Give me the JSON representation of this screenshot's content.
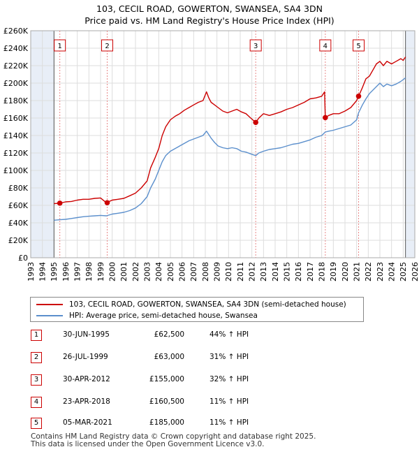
{
  "title_line1": "103, CECIL ROAD, GOWERTON, SWANSEA, SA4 3DN",
  "title_line2": "Price paid vs. HM Land Registry's House Price Index (HPI)",
  "legend": {
    "property": "103, CECIL ROAD, GOWERTON, SWANSEA, SA4 3DN (semi-detached house)",
    "hpi": "HPI: Average price, semi-detached house, Swansea"
  },
  "colors": {
    "property": "#cc0000",
    "hpi": "#5b8fcc",
    "shade": "#e8eef7",
    "grid": "#dddddd",
    "marker_line": "#e88888"
  },
  "sales": [
    {
      "num": "1",
      "date": "30-JUN-1995",
      "price": "£62,500",
      "hpi": "44% ↑ HPI"
    },
    {
      "num": "2",
      "date": "26-JUL-1999",
      "price": "£63,000",
      "hpi": "31% ↑ HPI"
    },
    {
      "num": "3",
      "date": "30-APR-2012",
      "price": "£155,000",
      "hpi": "32% ↑ HPI"
    },
    {
      "num": "4",
      "date": "23-APR-2018",
      "price": "£160,500",
      "hpi": "11% ↑ HPI"
    },
    {
      "num": "5",
      "date": "05-MAR-2021",
      "price": "£185,000",
      "hpi": "11% ↑ HPI"
    }
  ],
  "footer_line1": "Contains HM Land Registry data © Crown copyright and database right 2025.",
  "footer_line2": "This data is licensed under the Open Government Licence v3.0.",
  "chart_data": {
    "type": "line",
    "xlim": [
      1993,
      2026
    ],
    "ylim": [
      0,
      260000
    ],
    "x_ticks": [
      1993,
      1994,
      1995,
      1996,
      1997,
      1998,
      1999,
      2000,
      2001,
      2002,
      2003,
      2004,
      2005,
      2006,
      2007,
      2008,
      2009,
      2010,
      2011,
      2012,
      2013,
      2014,
      2015,
      2016,
      2017,
      2018,
      2019,
      2020,
      2021,
      2022,
      2023,
      2024,
      2025,
      2026
    ],
    "y_ticks": [
      {
        "v": 0,
        "label": "£0"
      },
      {
        "v": 20000,
        "label": "£20K"
      },
      {
        "v": 40000,
        "label": "£40K"
      },
      {
        "v": 60000,
        "label": "£60K"
      },
      {
        "v": 80000,
        "label": "£80K"
      },
      {
        "v": 100000,
        "label": "£100K"
      },
      {
        "v": 120000,
        "label": "£120K"
      },
      {
        "v": 140000,
        "label": "£140K"
      },
      {
        "v": 160000,
        "label": "£160K"
      },
      {
        "v": 180000,
        "label": "£180K"
      },
      {
        "v": 200000,
        "label": "£200K"
      },
      {
        "v": 220000,
        "label": "£220K"
      },
      {
        "v": 240000,
        "label": "£240K"
      },
      {
        "v": 260000,
        "label": "£260K"
      }
    ],
    "grid": true,
    "shaded_ranges": [
      [
        1993,
        1995.0
      ],
      [
        2025.2,
        2026
      ]
    ],
    "markers": [
      {
        "label": "1",
        "x": 1995.5,
        "y": 62500
      },
      {
        "label": "2",
        "x": 1999.57,
        "y": 63000
      },
      {
        "label": "3",
        "x": 2012.33,
        "y": 155000
      },
      {
        "label": "4",
        "x": 2018.31,
        "y": 160500
      },
      {
        "label": "5",
        "x": 2021.17,
        "y": 185000
      }
    ],
    "series": [
      {
        "name": "103, CECIL ROAD, GOWERTON, SWANSEA, SA4 3DN (semi-detached house)",
        "x": [
          1995.0,
          1995.5,
          1996,
          1996.5,
          1997,
          1997.5,
          1998,
          1998.5,
          1999,
          1999.5,
          2000,
          2000.5,
          2001,
          2001.5,
          2002,
          2002.5,
          2003,
          2003.3,
          2003.7,
          2004,
          2004.3,
          2004.6,
          2005,
          2005.4,
          2005.8,
          2006.2,
          2006.6,
          2007,
          2007.4,
          2007.8,
          2008.1,
          2008.3,
          2008.5,
          2008.8,
          2009.1,
          2009.5,
          2009.9,
          2010.3,
          2010.7,
          2011.1,
          2011.5,
          2011.9,
          2012.33,
          2012.6,
          2013,
          2013.5,
          2014,
          2014.5,
          2015,
          2015.5,
          2016,
          2016.5,
          2017,
          2017.5,
          2018.0,
          2018.25,
          2018.31,
          2018.6,
          2019,
          2019.5,
          2020,
          2020.5,
          2021.0,
          2021.17,
          2021.5,
          2021.8,
          2022.1,
          2022.4,
          2022.7,
          2023,
          2023.3,
          2023.6,
          2024,
          2024.4,
          2024.8,
          2025.0,
          2025.2
        ],
        "values": [
          62000,
          62500,
          64000,
          64500,
          66000,
          67000,
          67000,
          68000,
          68500,
          63000,
          66000,
          67000,
          68000,
          71000,
          74000,
          80000,
          88000,
          103000,
          115000,
          125000,
          140000,
          150000,
          158000,
          162000,
          165000,
          169000,
          172000,
          175000,
          178000,
          180000,
          190000,
          183000,
          178000,
          175000,
          172000,
          168000,
          166000,
          168000,
          170000,
          167000,
          165000,
          160000,
          155000,
          160000,
          165000,
          163000,
          165000,
          167000,
          170000,
          172000,
          175000,
          178000,
          182000,
          183000,
          185000,
          190000,
          160500,
          163000,
          165000,
          165000,
          168000,
          172000,
          180000,
          185000,
          195000,
          205000,
          208000,
          215000,
          222000,
          225000,
          220000,
          225000,
          222000,
          225000,
          228000,
          226000,
          230000
        ]
      },
      {
        "name": "HPI: Average price, semi-detached house, Swansea",
        "x": [
          1995.0,
          1995.5,
          1996,
          1996.5,
          1997,
          1997.5,
          1998,
          1998.5,
          1999,
          1999.5,
          2000,
          2000.5,
          2001,
          2001.5,
          2002,
          2002.5,
          2003,
          2003.3,
          2003.7,
          2004,
          2004.3,
          2004.6,
          2005,
          2005.4,
          2005.8,
          2006.2,
          2006.6,
          2007,
          2007.4,
          2007.8,
          2008.1,
          2008.5,
          2008.8,
          2009.1,
          2009.5,
          2009.9,
          2010.3,
          2010.7,
          2011.1,
          2011.5,
          2011.9,
          2012.33,
          2012.6,
          2013,
          2013.5,
          2014,
          2014.5,
          2015,
          2015.5,
          2016,
          2016.5,
          2017,
          2017.5,
          2018,
          2018.31,
          2018.6,
          2019,
          2019.5,
          2020,
          2020.5,
          2021.0,
          2021.17,
          2021.5,
          2021.8,
          2022.1,
          2022.4,
          2022.7,
          2023,
          2023.3,
          2023.6,
          2024,
          2024.4,
          2024.8,
          2025.0,
          2025.2
        ],
        "values": [
          43000,
          43500,
          44000,
          45000,
          46000,
          47000,
          47500,
          48000,
          48500,
          48000,
          50000,
          51000,
          52000,
          54000,
          57000,
          62000,
          70000,
          80000,
          90000,
          100000,
          110000,
          117000,
          122000,
          125000,
          128000,
          131000,
          134000,
          136000,
          138000,
          140000,
          145000,
          137000,
          132000,
          128000,
          126000,
          125000,
          126000,
          125000,
          122000,
          121000,
          119000,
          117000,
          120000,
          122000,
          124000,
          125000,
          126000,
          128000,
          130000,
          131000,
          133000,
          135000,
          138000,
          140000,
          144000,
          145000,
          146000,
          148000,
          150000,
          152000,
          158000,
          166000,
          175000,
          182000,
          188000,
          192000,
          196000,
          200000,
          196000,
          199000,
          197000,
          199000,
          202000,
          204000,
          206000
        ]
      }
    ]
  }
}
